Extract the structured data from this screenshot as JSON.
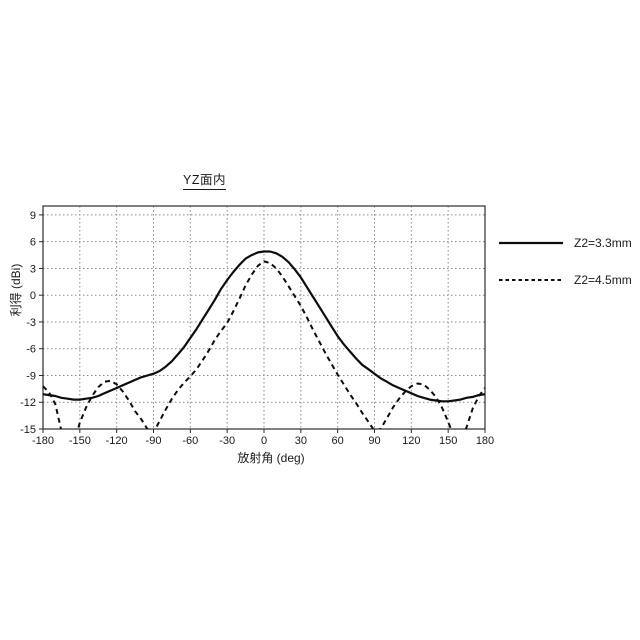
{
  "colors": {
    "background": "#ffffff",
    "line": "#0d0d0d",
    "grid": "#8a8a8a",
    "frame": "#2b2b2b",
    "text": "#1a1a1a"
  },
  "legend": {
    "entries": [
      {
        "label": "Z2=3.3mm",
        "style": "solid"
      },
      {
        "label": "Z2=4.5mm",
        "style": "dashed"
      }
    ]
  },
  "chart_data": {
    "type": "line",
    "title": "YZ面内",
    "xlabel": "放射角 (deg)",
    "ylabel": "利得 (dBi)",
    "xlim": [
      -180,
      180
    ],
    "ylim": [
      -15,
      10
    ],
    "grid": true,
    "legend_position": "right-outside",
    "x_ticks": [
      -180,
      -150,
      -120,
      -90,
      -60,
      -30,
      0,
      30,
      60,
      90,
      120,
      150,
      180
    ],
    "y_ticks": [
      9,
      6,
      3,
      0,
      -3,
      -6,
      -9,
      -12,
      -15
    ],
    "x": [
      -180,
      -175,
      -170,
      -165,
      -160,
      -155,
      -150,
      -145,
      -140,
      -135,
      -130,
      -125,
      -120,
      -115,
      -110,
      -105,
      -100,
      -95,
      -90,
      -85,
      -80,
      -75,
      -70,
      -65,
      -60,
      -55,
      -50,
      -45,
      -40,
      -35,
      -30,
      -25,
      -20,
      -15,
      -10,
      -5,
      0,
      5,
      10,
      15,
      20,
      25,
      30,
      35,
      40,
      45,
      50,
      55,
      60,
      65,
      70,
      75,
      80,
      85,
      90,
      95,
      100,
      105,
      110,
      115,
      120,
      125,
      130,
      135,
      140,
      145,
      150,
      155,
      160,
      165,
      170,
      175,
      180
    ],
    "series": [
      {
        "name": "Z2=3.3mm",
        "style": "solid",
        "values": [
          -11.1,
          -11.2,
          -11.3,
          -11.5,
          -11.6,
          -11.7,
          -11.7,
          -11.6,
          -11.5,
          -11.3,
          -11.0,
          -10.7,
          -10.4,
          -10.1,
          -9.8,
          -9.5,
          -9.2,
          -9.0,
          -8.8,
          -8.5,
          -8.0,
          -7.4,
          -6.6,
          -5.8,
          -4.8,
          -3.8,
          -2.7,
          -1.6,
          -0.5,
          0.7,
          1.7,
          2.6,
          3.4,
          4.1,
          4.5,
          4.8,
          4.9,
          4.9,
          4.7,
          4.3,
          3.7,
          2.9,
          2.0,
          0.9,
          -0.2,
          -1.3,
          -2.4,
          -3.5,
          -4.6,
          -5.5,
          -6.3,
          -7.1,
          -7.8,
          -8.3,
          -8.8,
          -9.3,
          -9.7,
          -10.1,
          -10.4,
          -10.7,
          -11.0,
          -11.3,
          -11.5,
          -11.7,
          -11.8,
          -11.9,
          -11.9,
          -11.8,
          -11.7,
          -11.5,
          -11.4,
          -11.2,
          -11.1
        ]
      },
      {
        "name": "Z2=4.5mm",
        "style": "dashed",
        "values": [
          -10.2,
          -10.9,
          -12.2,
          -15.2,
          -17.0,
          -16.6,
          -14.3,
          -12.6,
          -11.3,
          -10.3,
          -9.7,
          -9.6,
          -10.0,
          -10.8,
          -11.8,
          -13.0,
          -13.9,
          -15.0,
          -15.4,
          -14.1,
          -12.8,
          -11.6,
          -10.6,
          -9.8,
          -9.1,
          -8.3,
          -7.3,
          -6.2,
          -5.0,
          -4.0,
          -3.1,
          -1.8,
          -0.4,
          1.1,
          2.3,
          3.3,
          3.8,
          3.6,
          3.0,
          2.1,
          1.0,
          -0.1,
          -1.2,
          -2.5,
          -3.9,
          -5.2,
          -6.5,
          -7.7,
          -8.9,
          -10.0,
          -11.1,
          -12.1,
          -13.2,
          -14.2,
          -15.2,
          -15.0,
          -13.8,
          -12.6,
          -11.6,
          -10.8,
          -10.2,
          -9.9,
          -10.0,
          -10.6,
          -11.4,
          -12.6,
          -14.2,
          -16.0,
          -16.4,
          -14.8,
          -12.7,
          -11.3,
          -10.4
        ]
      }
    ]
  }
}
